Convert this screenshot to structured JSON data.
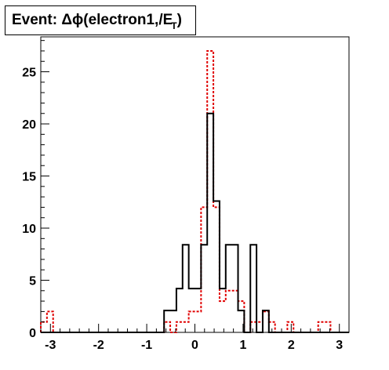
{
  "title": {
    "main": "Event: Δϕ(electron1,",
    "met_symbol": "/E",
    "met_sub": "T",
    "close": ")"
  },
  "chart_data": {
    "type": "histogram-step",
    "title": "Event: Δϕ(electron1,/E_T)",
    "xlim": [
      -3.2,
      3.2
    ],
    "ylim": [
      0,
      28.35
    ],
    "bin_width": 0.128,
    "x_ticks": [
      -3,
      -2,
      -1,
      0,
      1,
      2,
      3
    ],
    "x_tick_labels": [
      "-3",
      "-2",
      "-1",
      "0",
      "1",
      "2",
      "3"
    ],
    "y_ticks": [
      0,
      5,
      10,
      15,
      20,
      25
    ],
    "y_tick_labels": [
      "0",
      "5",
      "10",
      "15",
      "20",
      "25"
    ],
    "series": [
      {
        "style": "solid",
        "color": "#000000",
        "values": [
          0,
          0,
          0,
          0,
          0,
          0,
          0,
          0,
          0,
          0,
          0,
          0,
          0,
          0,
          0,
          0,
          0,
          0,
          0,
          0,
          2.1,
          2.1,
          4.2,
          8.4,
          4.2,
          4.2,
          8.4,
          21,
          12.6,
          4.2,
          8.4,
          8.4,
          2.1,
          0,
          8.4,
          0,
          2.1,
          0,
          0,
          0,
          0,
          0,
          0,
          0,
          0,
          0,
          0,
          0,
          0,
          0
        ]
      },
      {
        "style": "dashed",
        "color": "#e00000",
        "values": [
          1,
          2,
          0,
          0,
          0,
          0,
          0,
          0,
          0,
          0,
          0,
          0,
          0,
          0,
          0,
          0,
          0,
          0,
          0,
          0,
          1,
          0,
          1,
          1,
          2,
          2,
          12,
          27,
          12,
          3,
          4,
          4,
          3,
          0,
          1,
          1,
          2,
          1,
          0,
          0,
          1,
          0,
          0,
          0,
          0,
          1,
          1,
          0,
          0,
          0
        ]
      }
    ],
    "grid": false,
    "legend": "none"
  }
}
